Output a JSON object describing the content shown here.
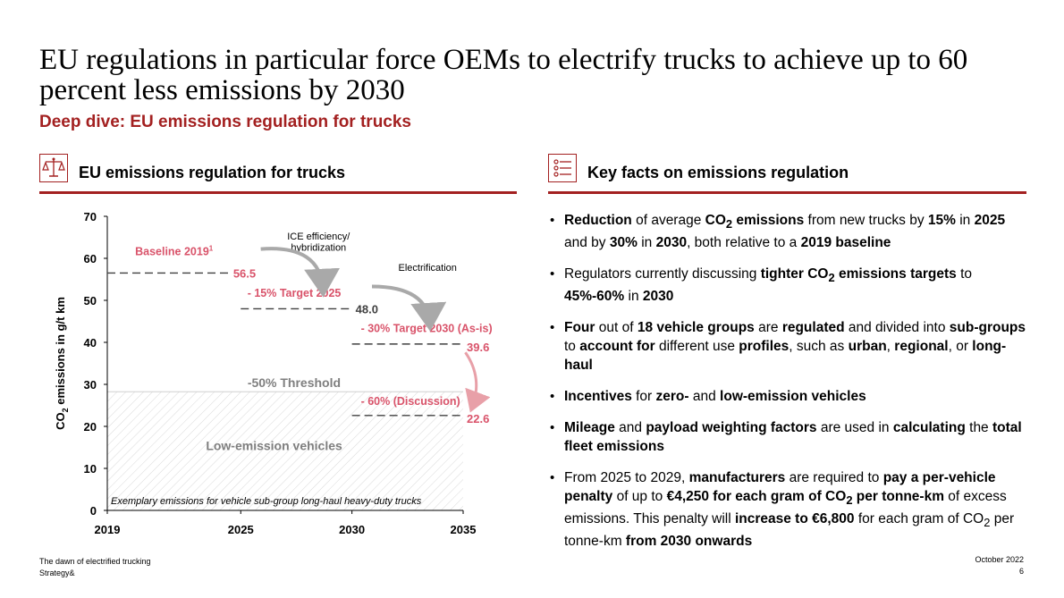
{
  "header": {
    "title": "EU regulations in particular force OEMs to electrify trucks to achieve up to 60 percent less emissions by 2030",
    "subtitle": "Deep dive: EU emissions regulation for trucks"
  },
  "left_panel": {
    "heading": "EU emissions regulation for trucks",
    "icon": "scale-icon"
  },
  "right_panel": {
    "heading": "Key facts on emissions regulation",
    "icon": "checklist-icon",
    "facts": [
      [
        {
          "t": "Reduction",
          "b": true
        },
        {
          "t": " of average "
        },
        {
          "t": "CO",
          "b": true
        },
        {
          "t": "2",
          "b": true,
          "sub": true
        },
        {
          "t": " emissions",
          "b": true
        },
        {
          "t": " from new trucks by "
        },
        {
          "t": "15%",
          "b": true
        },
        {
          "t": " in "
        },
        {
          "t": "2025",
          "b": true
        },
        {
          "t": " and by "
        },
        {
          "t": "30%",
          "b": true
        },
        {
          "t": " in "
        },
        {
          "t": "2030",
          "b": true
        },
        {
          "t": ", both relative to a "
        },
        {
          "t": "2019 baseline",
          "b": true
        }
      ],
      [
        {
          "t": "Regulators currently discussing "
        },
        {
          "t": "tighter CO",
          "b": true
        },
        {
          "t": "2",
          "b": true,
          "sub": true
        },
        {
          "t": " emissions targets",
          "b": true
        },
        {
          "t": " to "
        },
        {
          "t": "45%-60%",
          "b": true
        },
        {
          "t": " in "
        },
        {
          "t": "2030",
          "b": true
        }
      ],
      [
        {
          "t": "Four",
          "b": true
        },
        {
          "t": " out of "
        },
        {
          "t": "18 vehicle groups",
          "b": true
        },
        {
          "t": " are "
        },
        {
          "t": "regulated",
          "b": true
        },
        {
          "t": " and divided into "
        },
        {
          "t": "sub-groups",
          "b": true
        },
        {
          "t": " to "
        },
        {
          "t": "account for",
          "b": true
        },
        {
          "t": " different use "
        },
        {
          "t": "profiles",
          "b": true
        },
        {
          "t": ", such as "
        },
        {
          "t": "urban",
          "b": true
        },
        {
          "t": ", "
        },
        {
          "t": "regional",
          "b": true
        },
        {
          "t": ", or "
        },
        {
          "t": "long-haul",
          "b": true
        }
      ],
      [
        {
          "t": "Incentives",
          "b": true
        },
        {
          "t": " for "
        },
        {
          "t": "zero-",
          "b": true
        },
        {
          "t": " and "
        },
        {
          "t": "low-emission vehicles",
          "b": true
        }
      ],
      [
        {
          "t": "Mileage",
          "b": true
        },
        {
          "t": " and "
        },
        {
          "t": "payload weighting factors",
          "b": true
        },
        {
          "t": " are used in "
        },
        {
          "t": "calculating",
          "b": true
        },
        {
          "t": " the "
        },
        {
          "t": "total fleet emissions",
          "b": true
        }
      ],
      [
        {
          "t": "From 2025 to 2029, "
        },
        {
          "t": "manufacturers",
          "b": true
        },
        {
          "t": " are required to "
        },
        {
          "t": "pay a per-vehicle penalty",
          "b": true
        },
        {
          "t": " of up to "
        },
        {
          "t": "€4,250 for each gram of CO",
          "b": true
        },
        {
          "t": "2",
          "b": true,
          "sub": true
        },
        {
          "t": " per tonne-km",
          "b": true
        },
        {
          "t": " of excess emissions. This penalty will "
        },
        {
          "t": "increase to €6,800",
          "b": true
        },
        {
          "t": " for each gram of CO"
        },
        {
          "t": "2",
          "sub": true
        },
        {
          "t": " per tonne-km "
        },
        {
          "t": "from 2030 onwards",
          "b": true
        }
      ]
    ]
  },
  "chart_data": {
    "type": "line",
    "title": "EU emissions regulation for trucks",
    "ylabel_main": "CO",
    "ylabel_sub": "2",
    "ylabel_rest": " emissions in g/t km",
    "xlabel": "",
    "xlim": [
      2019,
      2035
    ],
    "ylim": [
      0,
      70
    ],
    "x_ticks": [
      "2019",
      "2025",
      "2030",
      "2035"
    ],
    "y_ticks": [
      "0",
      "10",
      "20",
      "30",
      "40",
      "50",
      "60",
      "70"
    ],
    "x_tick_values": [
      2019,
      2025,
      2030,
      2035
    ],
    "y_tick_values": [
      0,
      10,
      20,
      30,
      40,
      50,
      60,
      70
    ],
    "segments": [
      {
        "name": "Baseline 2019",
        "superscript": "1",
        "x_start": 2019,
        "x_end": 2024.5,
        "value": 56.5,
        "value_label": "56.5"
      },
      {
        "name": "- 15% Target 2025",
        "x_start": 2025,
        "x_end": 2030,
        "value": 48.0,
        "value_label": "48.0"
      },
      {
        "name": "- 30% Target 2030 (As-is)",
        "x_start": 2030,
        "x_end": 2035,
        "value": 39.6,
        "value_label": "39.6"
      },
      {
        "name": "- 60% (Discussion)",
        "x_start": 2030,
        "x_end": 2035,
        "value": 22.6,
        "value_label": "22.6"
      }
    ],
    "threshold": {
      "name": "-50% Threshold",
      "value": 28.25
    },
    "region_label": "Low-emission vehicles",
    "annotations": [
      "ICE efficiency/",
      "hybridization",
      "Electrification"
    ],
    "footnote": "Exemplary emissions for vehicle sub-group long-haul heavy-duty trucks",
    "colors": {
      "accent": "#a32020",
      "label": "#d9536a",
      "dash": "#404040",
      "arrow": "#a9a9a9",
      "threshold_text": "#7f7f7f",
      "arrow_red": "#e8a0a8"
    }
  },
  "footer": {
    "source_line1": "The dawn of electrified trucking",
    "source_line2": "Strategy&",
    "date": "October 2022",
    "page": "6"
  }
}
